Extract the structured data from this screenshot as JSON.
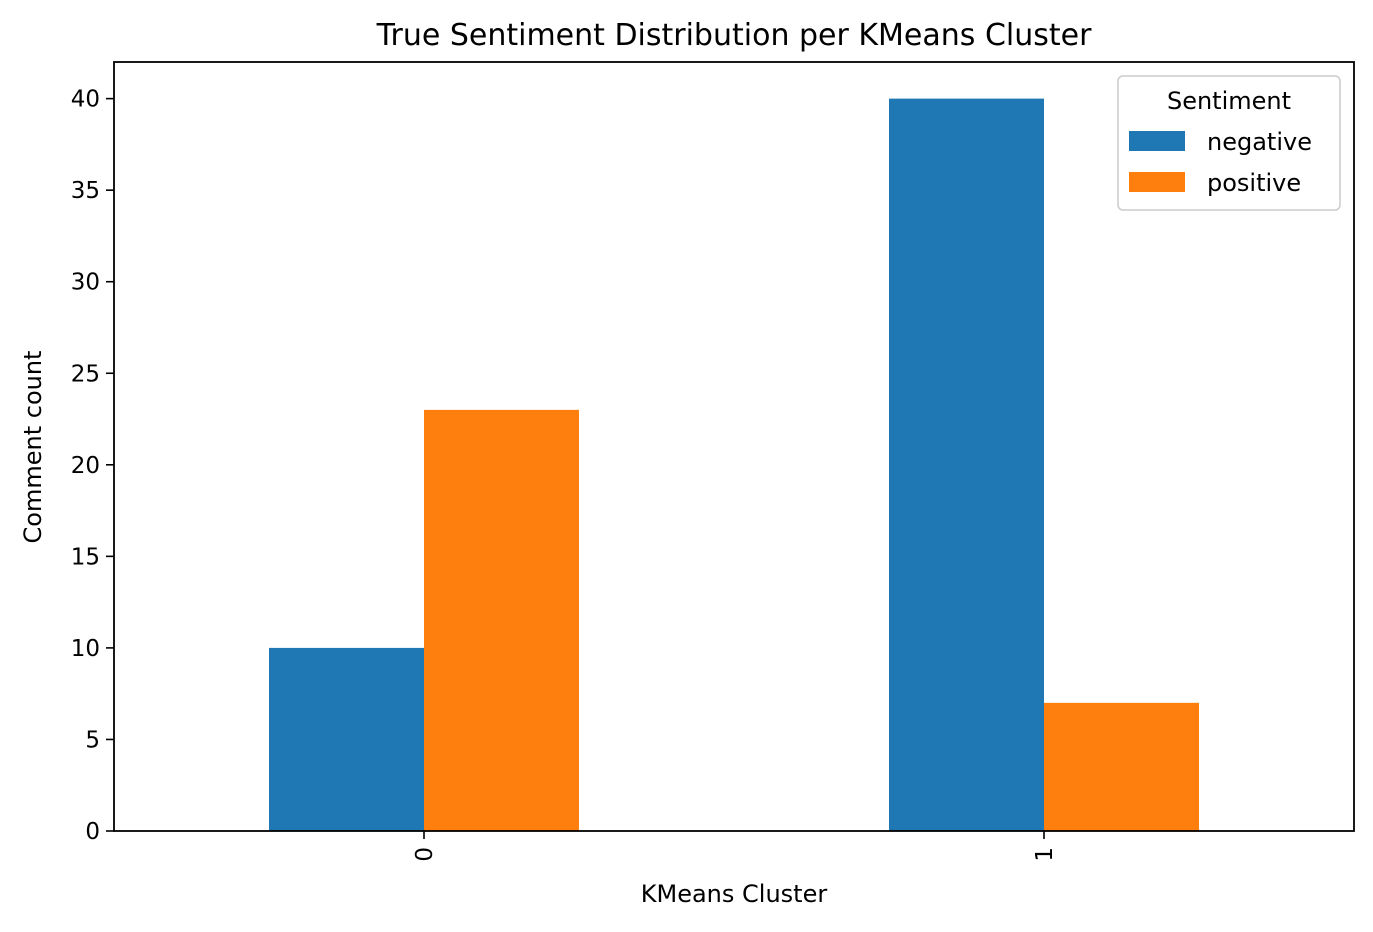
{
  "chart_data": {
    "type": "bar",
    "title": "True Sentiment Distribution per KMeans Cluster",
    "xlabel": "KMeans Cluster",
    "ylabel": "Comment count",
    "categories": [
      "0",
      "1"
    ],
    "series": [
      {
        "name": "negative",
        "values": [
          10,
          40
        ],
        "color": "#1f77b4"
      },
      {
        "name": "positive",
        "values": [
          23,
          7
        ],
        "color": "#ff7f0e"
      }
    ],
    "ylim": [
      0,
      42
    ],
    "yticks": [
      0,
      5,
      10,
      15,
      20,
      25,
      30,
      35,
      40
    ],
    "ytick_labels": [
      "0",
      "5",
      "10",
      "15",
      "20",
      "25",
      "30",
      "35",
      "40"
    ],
    "xtick_rotation": "vertical",
    "grid": false,
    "legend": {
      "title": "Sentiment",
      "placement": "top-right"
    }
  }
}
